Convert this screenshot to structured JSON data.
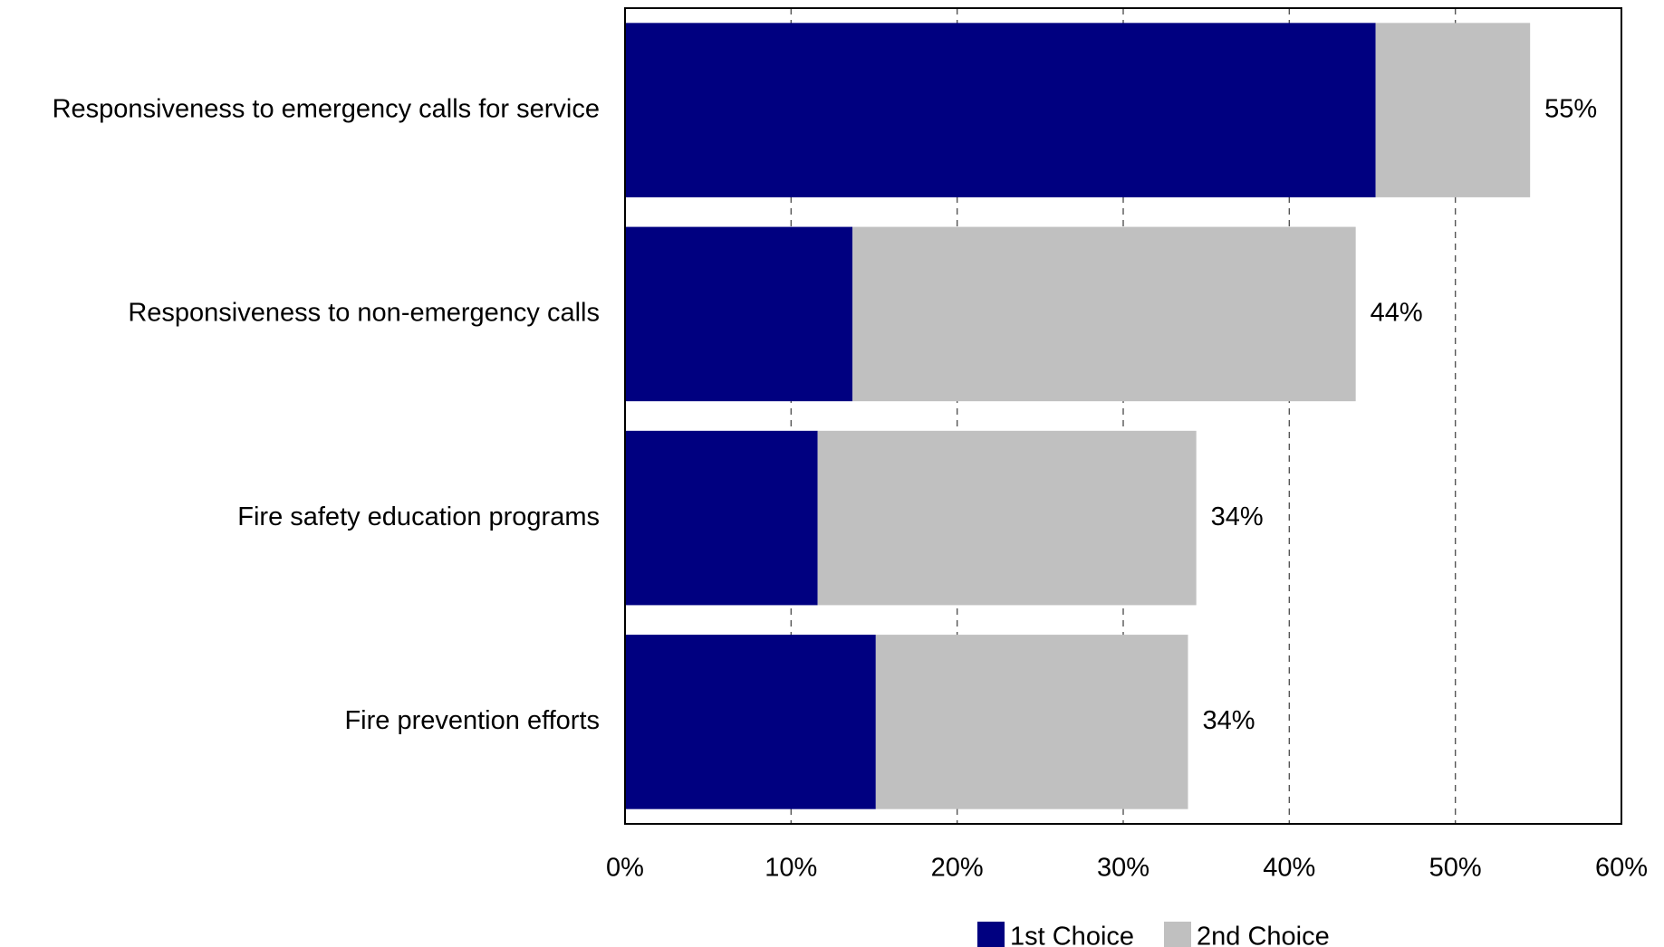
{
  "chart_data": {
    "type": "bar",
    "orientation": "horizontal",
    "stacked": true,
    "title": "",
    "xlabel": "",
    "ylabel": "",
    "categories": [
      "Responsiveness to emergency calls for service",
      "Responsiveness to non-emergency calls",
      "Fire safety education programs",
      "Fire prevention efforts"
    ],
    "series": [
      {
        "name": "1st Choice",
        "color": "#000080",
        "values": [
          45.2,
          13.7,
          11.6,
          15.1
        ]
      },
      {
        "name": "2nd Choice",
        "color": "#C0C0C0",
        "values": [
          9.3,
          30.3,
          22.8,
          18.8
        ]
      }
    ],
    "totals_labels": [
      "55%",
      "44%",
      "34%",
      "34%"
    ],
    "xlim": [
      0,
      60
    ],
    "xticks": [
      0,
      10,
      20,
      30,
      40,
      50,
      60
    ],
    "xtick_labels": [
      "0%",
      "10%",
      "20%",
      "30%",
      "40%",
      "50%",
      "60%"
    ],
    "grid": "vertical-dashed",
    "legend_position": "bottom-center"
  }
}
